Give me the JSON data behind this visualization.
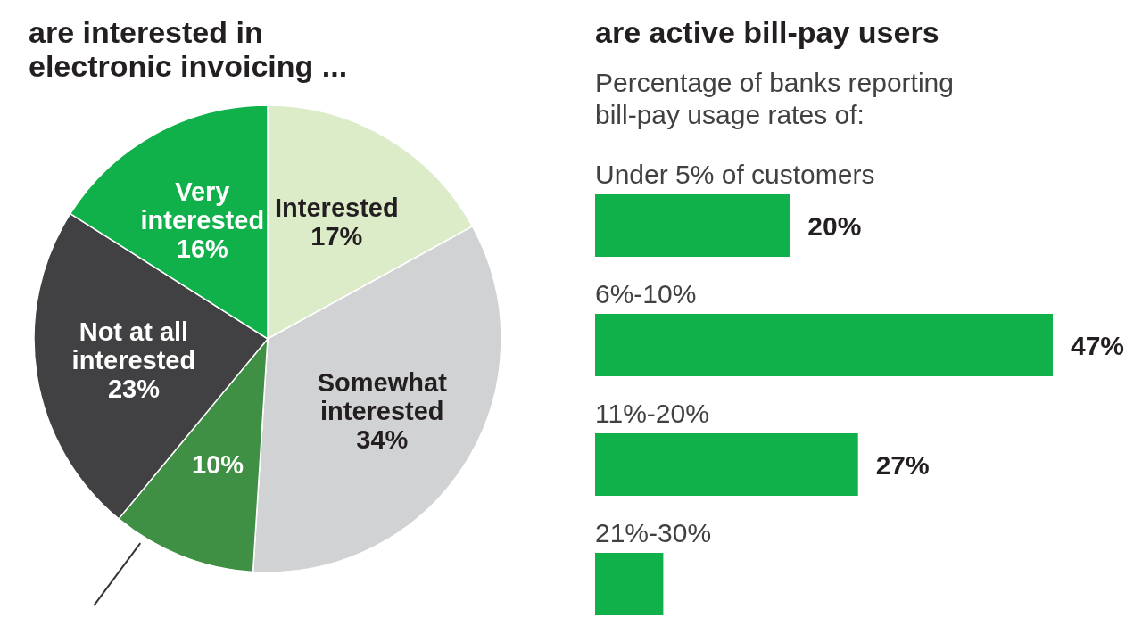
{
  "chart_data": [
    {
      "type": "pie",
      "title": "are interested in electronic invoicing ...",
      "categories": [
        "Interested",
        "Somewhat interested",
        null,
        "Not at all interested",
        "Very interested"
      ],
      "values": [
        17,
        34,
        10,
        23,
        16
      ],
      "colors": [
        "#dcebc8",
        "#d1d2d4",
        "#3f8f44",
        "#414042",
        "#10b04a"
      ],
      "value_labels": [
        "17%",
        "34%",
        "10%",
        "23%",
        "16%"
      ]
    },
    {
      "type": "bar",
      "orientation": "horizontal",
      "title": "are active bill-pay users",
      "subtitle": "Percentage of banks reporting bill-pay usage rates of:",
      "categories": [
        "Under 5% of customers",
        "6%-10%",
        "11%-20%",
        "21%-30%"
      ],
      "values": [
        20,
        47,
        27,
        7
      ],
      "color": "#10b04a",
      "value_labels": [
        "20%",
        "47%",
        "27%",
        null
      ]
    }
  ]
}
